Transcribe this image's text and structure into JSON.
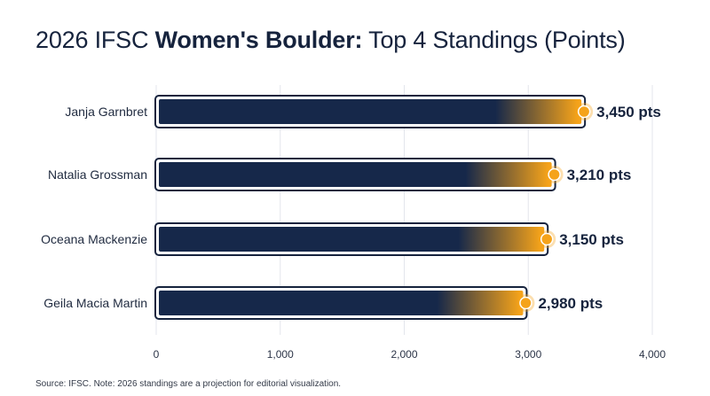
{
  "page": {
    "title_part1": "2026 IFSC ",
    "title_bold": "Women's Boulder:",
    "title_part2": " Top 4 Standings (Points)",
    "source": "Source: IFSC. Note: 2026 standings are a projection for editorial visualization."
  },
  "chart_data": {
    "type": "bar",
    "orientation": "horizontal",
    "categories": [
      "Janja Garnbret",
      "Natalia Grossman",
      "Oceana Mackenzie",
      "Geila Macia Martin"
    ],
    "values": [
      3450,
      3210,
      3150,
      2980
    ],
    "value_labels": [
      "3,450 pts",
      "3,210 pts",
      "3,150 pts",
      "2,980 pts"
    ],
    "xlim": [
      0,
      4000
    ],
    "xticks": [
      0,
      1000,
      2000,
      3000,
      4000
    ],
    "xtick_labels": [
      "0",
      "1,000",
      "2,000",
      "3,000",
      "4,000"
    ],
    "grid": true,
    "colors": {
      "bar": "#16284a",
      "accent": "#f5a31a",
      "grid": "#e3e6ec",
      "outline": "#16233d"
    }
  }
}
